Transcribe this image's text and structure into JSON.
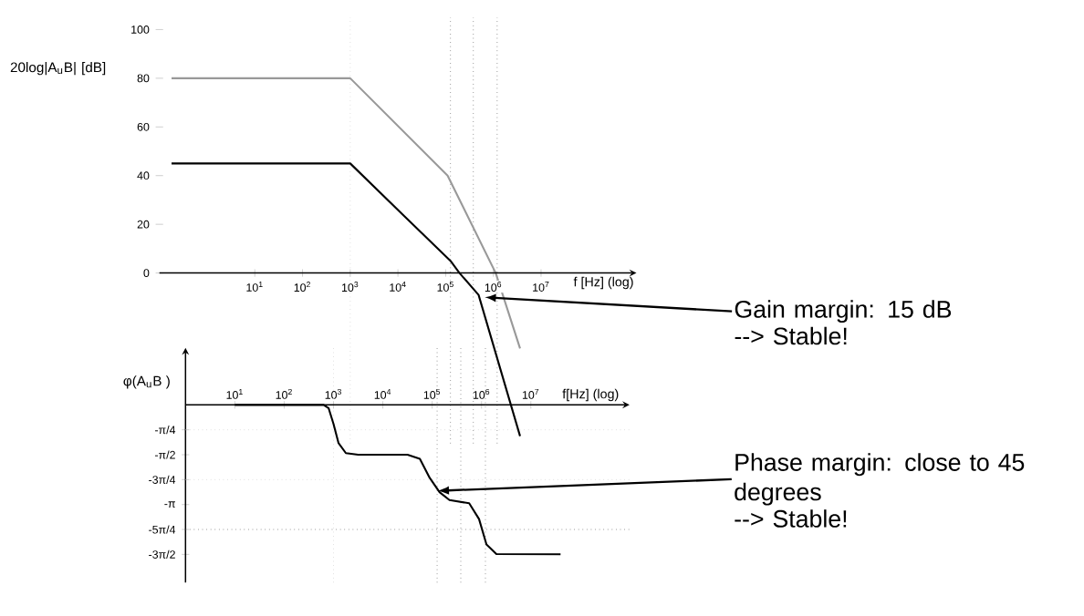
{
  "chart_data": [
    {
      "type": "line",
      "log": "x",
      "xlabel": "f [Hz] (log)",
      "ylabel": "20log|A$_{u}$B| [dB]",
      "xlim": [
        0.1,
        1000000000
      ],
      "ylim": [
        -70,
        105
      ],
      "xticks": [
        {
          "value": 10,
          "label": "10$^{1}$"
        },
        {
          "value": 100,
          "label": "10$^{2}$"
        },
        {
          "value": 1000,
          "label": "10$^{3}$"
        },
        {
          "value": 10000,
          "label": "10$^{4}$"
        },
        {
          "value": 100000,
          "label": "10$^{5}$"
        },
        {
          "value": 1000000,
          "label": "10$^{6}$"
        },
        {
          "value": 10000000,
          "label": "10$^{7}$"
        }
      ],
      "yticks": [
        0,
        20,
        40,
        60,
        80,
        100
      ],
      "series": [
        {
          "color": "#999999",
          "x": [
            0.18,
            1000,
            110000,
            1120000,
            3630000
          ],
          "values": [
            80,
            80,
            40,
            0,
            -31
          ]
        },
        {
          "color": "#000000",
          "x": [
            0.18,
            1000,
            12600,
            126000,
            195000,
            490000,
            3630000
          ],
          "values": [
            45,
            45,
            24,
            5,
            0,
            -9,
            -67
          ]
        }
      ],
      "ref_lines": [
        {
          "axis": "x",
          "value": 1000,
          "color": "#cccccc",
          "line_style": "dotted"
        },
        {
          "axis": "x",
          "value": 126000,
          "color": "#555555",
          "line_style": "dotted"
        },
        {
          "axis": "x",
          "value": 380000,
          "color": "#555555",
          "line_style": "dotted"
        },
        {
          "axis": "x",
          "value": 1200000,
          "color": "#555555",
          "line_style": "dotted"
        }
      ],
      "annotations": [
        {
          "text": "Gain margin: 15 dB",
          "x": 660000,
          "y": -10
        },
        "--> Stable!"
      ]
    },
    {
      "type": "line",
      "log": "x",
      "xlabel": "f[Hz] (log)",
      "ylabel": "φ(A$_{u}$B )",
      "xlim": [
        1,
        1000000000
      ],
      "ylim": [
        -5.6,
        1.8
      ],
      "xticks": [
        {
          "value": 10,
          "label": "10$^{1}$"
        },
        {
          "value": 100,
          "label": "10$^{2}$"
        },
        {
          "value": 1000,
          "label": "10$^{3}$"
        },
        {
          "value": 10000,
          "label": "10$^{4}$"
        },
        {
          "value": 100000,
          "label": "10$^{5}$"
        },
        {
          "value": 1000000,
          "label": "10$^{6}$"
        },
        {
          "value": 10000000,
          "label": "10$^{7}$"
        }
      ],
      "yticks": [
        {
          "value": -0.785,
          "label": "-π/4"
        },
        {
          "value": -1.571,
          "label": "-π/2"
        },
        {
          "value": -2.356,
          "label": "-3π/4"
        },
        {
          "value": -3.142,
          "label": "-π"
        },
        {
          "value": -3.927,
          "label": "-5π/4"
        },
        {
          "value": -4.712,
          "label": "-3π/2"
        }
      ],
      "series": [
        {
          "color": "#000000",
          "x": [
            10,
            631,
            794,
            1000,
            1260,
            1780,
            3160,
            31600,
            56200,
            89100,
            141000,
            224000,
            562000,
            891000,
            1260000,
            2000000,
            40000000
          ],
          "values": [
            0,
            0,
            -0.1,
            -0.6,
            -1.2,
            -1.52,
            -1.57,
            -1.57,
            -1.7,
            -2.3,
            -2.75,
            -3.0,
            -3.1,
            -3.6,
            -4.4,
            -4.7,
            -4.71
          ]
        }
      ],
      "ref_lines": [
        {
          "axis": "y",
          "value": -0.785,
          "color": "#cccccc",
          "line_style": "dotted"
        },
        {
          "axis": "y",
          "value": -2.356,
          "color": "#cccccc",
          "line_style": "dotted"
        },
        {
          "axis": "y",
          "value": -3.927,
          "color": "#555555",
          "line_style": "dotted"
        },
        {
          "axis": "x",
          "value": 1000,
          "color": "#cccccc",
          "line_style": "dotted"
        },
        {
          "axis": "x",
          "value": 126000,
          "color": "#555555",
          "line_style": "dotted"
        },
        {
          "axis": "x",
          "value": 380000,
          "color": "#555555",
          "line_style": "dotted"
        },
        {
          "axis": "x",
          "value": 1200000,
          "color": "#555555",
          "line_style": "dotted"
        }
      ],
      "annotations": [
        {
          "text": "Phase margin: close to 45 degrees",
          "x": 130000,
          "y": -2.71
        },
        "--> Stable!"
      ]
    }
  ]
}
